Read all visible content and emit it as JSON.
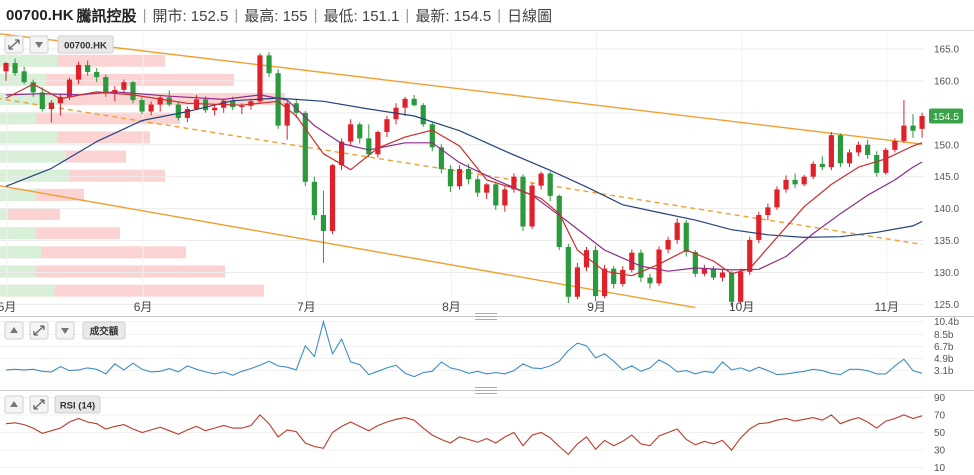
{
  "header": {
    "symbol": "00700.HK",
    "name": "騰訊控股",
    "open_label": "開市: 152.5",
    "high_label": "最高: 155",
    "low_label": "最低: 151.1",
    "last_label": "最新: 154.5",
    "period_label": "日線圖"
  },
  "colors": {
    "up": "#e0202a",
    "down": "#2a9a3c",
    "channel": "#f0a030",
    "ma_short": "#cc2c2c",
    "ma_mid": "#8a2f8a",
    "ma_long": "#24437e",
    "volume_line": "#3d8fc6",
    "rsi_line": "#c0392b",
    "price_badge": "#3aa34a",
    "vp_up": "#fbd3d3",
    "vp_down": "#d8efd8"
  },
  "panels": {
    "price_tag": "00700.HK",
    "volume_tag": "成交額",
    "rsi_tag": "RSI (14)"
  },
  "chart_data": [
    {
      "type": "candlestick",
      "title": "00700.HK",
      "price_label": "154.5",
      "y_ticks": [
        165.0,
        160.0,
        155.0,
        150.0,
        145.0,
        140.0,
        135.0,
        130.0,
        125.0
      ],
      "ylim": [
        123.5,
        167.5
      ],
      "x_ticks": [
        "5月",
        "6月",
        "7月",
        "8月",
        "9月",
        "10月",
        "11月"
      ],
      "candles": [
        [
          161.5,
          163,
          160,
          162.8
        ],
        [
          162.8,
          163.5,
          160.8,
          161.2
        ],
        [
          161.5,
          162.2,
          159.5,
          159.8
        ],
        [
          159.8,
          160.2,
          157.5,
          158.2
        ],
        [
          158.2,
          159,
          155.2,
          155.6
        ],
        [
          155.6,
          157,
          153.5,
          156.6
        ],
        [
          156.5,
          157.8,
          154.6,
          157.5
        ],
        [
          157.5,
          160.5,
          157,
          160.2
        ],
        [
          160.2,
          163,
          159.5,
          162.5
        ],
        [
          162.5,
          163.2,
          160.8,
          161.4
        ],
        [
          161.4,
          162,
          159.8,
          160.6
        ],
        [
          160.6,
          161,
          157.5,
          158
        ],
        [
          158,
          159.2,
          156.8,
          158.6
        ],
        [
          158.6,
          160.2,
          158.1,
          159.8
        ],
        [
          159.8,
          160,
          156.5,
          157
        ],
        [
          157,
          157.5,
          154.8,
          155.2
        ],
        [
          155.2,
          156.8,
          154.6,
          156.3
        ],
        [
          156.3,
          157.8,
          155.2,
          157.4
        ],
        [
          157.4,
          158.5,
          156,
          156.3
        ],
        [
          156.3,
          156.8,
          153.8,
          154.2
        ],
        [
          154.2,
          156,
          153.5,
          155.6
        ],
        [
          155.6,
          157.8,
          155.4,
          157.1
        ],
        [
          157.1,
          157.6,
          155,
          155.4
        ],
        [
          155.4,
          156.2,
          154.6,
          155.8
        ],
        [
          155.8,
          157.2,
          155,
          156.9
        ],
        [
          156.9,
          157.5,
          155.4,
          155.9
        ],
        [
          155.9,
          156.5,
          154.8,
          156.1
        ],
        [
          156.1,
          157.2,
          155.5,
          156.8
        ],
        [
          156.8,
          164.3,
          156.5,
          164
        ],
        [
          164,
          164.5,
          160.6,
          161.2
        ],
        [
          161.2,
          161.8,
          152.5,
          153
        ],
        [
          153,
          157,
          150.8,
          156.5
        ],
        [
          156.5,
          157.2,
          154.2,
          155
        ],
        [
          155,
          155.3,
          143.5,
          144.2
        ],
        [
          144.2,
          145,
          138.2,
          139
        ],
        [
          139,
          142.8,
          131.5,
          136.5
        ],
        [
          136.5,
          147,
          136,
          146.8
        ],
        [
          146.8,
          151,
          146,
          150.5
        ],
        [
          150.5,
          154,
          149.8,
          153.2
        ],
        [
          153.2,
          153.5,
          150.2,
          151
        ],
        [
          151,
          153.2,
          148,
          148.5
        ],
        [
          148.5,
          152.2,
          148,
          152
        ],
        [
          152,
          154.5,
          151.2,
          154
        ],
        [
          154,
          156.5,
          153.2,
          155.8
        ],
        [
          155.8,
          157.5,
          154.5,
          157.2
        ],
        [
          157.2,
          157.8,
          156,
          156.2
        ],
        [
          156.2,
          156.5,
          152.8,
          153.2
        ],
        [
          153.2,
          153.6,
          149,
          149.6
        ],
        [
          149.6,
          150.1,
          145.5,
          146.2
        ],
        [
          146.2,
          146.8,
          142.6,
          143.5
        ],
        [
          143.5,
          146.8,
          143,
          146.2
        ],
        [
          146.2,
          147,
          143.8,
          144.6
        ],
        [
          144.6,
          145.2,
          141.8,
          142.5
        ],
        [
          142.5,
          144,
          141.5,
          143.8
        ],
        [
          143.8,
          144.2,
          139.8,
          140.5
        ],
        [
          140.5,
          143.5,
          139.5,
          143
        ],
        [
          143,
          145.5,
          142.5,
          145
        ],
        [
          145,
          145.4,
          136.5,
          137.2
        ],
        [
          137.2,
          144,
          136.8,
          143.6
        ],
        [
          143.6,
          145.8,
          143,
          145.5
        ],
        [
          145.5,
          145.8,
          141.2,
          142
        ],
        [
          142,
          142.2,
          133.5,
          134
        ],
        [
          134,
          134.5,
          125.2,
          126.2
        ],
        [
          126.2,
          131.5,
          125.8,
          130.8
        ],
        [
          130.8,
          134,
          130.2,
          133.5
        ],
        [
          133.5,
          134.2,
          125.5,
          126.3
        ],
        [
          126.3,
          131.2,
          126,
          130.6
        ],
        [
          130.6,
          131,
          127.5,
          128.2
        ],
        [
          128.2,
          131,
          127.8,
          130.4
        ],
        [
          130.4,
          133.6,
          130,
          133.1
        ],
        [
          133.1,
          133.6,
          128.5,
          129.2
        ],
        [
          129.2,
          129.8,
          127.5,
          128.3
        ],
        [
          128.3,
          134.1,
          127.9,
          133.6
        ],
        [
          133.6,
          135.6,
          133,
          135.1
        ],
        [
          135.1,
          138.5,
          134.5,
          137.8
        ],
        [
          137.8,
          138.2,
          132.5,
          133.2
        ],
        [
          133.2,
          133.5,
          129.3,
          129.8
        ],
        [
          129.8,
          131.2,
          129.4,
          130.6
        ],
        [
          130.6,
          131,
          128.8,
          129.2
        ],
        [
          129.2,
          130.5,
          128.6,
          130
        ],
        [
          130,
          130.2,
          124.6,
          125.4
        ],
        [
          125.4,
          130.6,
          125.1,
          130.1
        ],
        [
          130.1,
          135.6,
          129.6,
          135.1
        ],
        [
          135.1,
          139.5,
          134.6,
          139
        ],
        [
          139,
          140.8,
          138.2,
          140.2
        ],
        [
          140.2,
          143.5,
          139.8,
          143
        ],
        [
          143,
          145.2,
          142.5,
          144.5
        ],
        [
          144.5,
          145.5,
          143.2,
          143.8
        ],
        [
          143.8,
          145.3,
          143.5,
          145
        ],
        [
          145,
          147.4,
          144.6,
          147
        ],
        [
          147,
          148.2,
          146,
          146.5
        ],
        [
          146.5,
          152,
          146,
          151.5
        ],
        [
          151.5,
          151.8,
          146.5,
          147.1
        ],
        [
          147.1,
          149.3,
          146.5,
          148.8
        ],
        [
          148.8,
          150.5,
          148.2,
          150
        ],
        [
          150,
          150.8,
          147.8,
          148.4
        ],
        [
          148.4,
          149,
          145,
          145.6
        ],
        [
          145.6,
          149.5,
          145.3,
          149.2
        ],
        [
          149.2,
          151,
          148.8,
          150.6
        ],
        [
          150.6,
          157,
          150.3,
          153
        ],
        [
          153,
          154.8,
          151.1,
          152.2
        ],
        [
          152.5,
          155,
          151.1,
          154.5
        ]
      ],
      "ma_short": [
        [
          0,
          157.3
        ],
        [
          3,
          159.5
        ],
        [
          6,
          157.2
        ],
        [
          10,
          158.3
        ],
        [
          14,
          157.8
        ],
        [
          20,
          156.5
        ],
        [
          26,
          156.2
        ],
        [
          30,
          156.8
        ],
        [
          32,
          154.5
        ],
        [
          35,
          148.6
        ],
        [
          38,
          146.1
        ],
        [
          41,
          149.5
        ],
        [
          44,
          151.2
        ],
        [
          47,
          152.3
        ],
        [
          50,
          149.8
        ],
        [
          53,
          144.5
        ],
        [
          56,
          143.2
        ],
        [
          59,
          141.6
        ],
        [
          61,
          139.2
        ],
        [
          63,
          133.5
        ],
        [
          66,
          130.2
        ],
        [
          69,
          129.5
        ],
        [
          72,
          131.3
        ],
        [
          75,
          133.5
        ],
        [
          78,
          131.8
        ],
        [
          80,
          129.8
        ],
        [
          82,
          130.6
        ],
        [
          85,
          135.5
        ],
        [
          88,
          140.3
        ],
        [
          91,
          143.8
        ],
        [
          94,
          146.5
        ],
        [
          97,
          147.8
        ],
        [
          100,
          149.8
        ],
        [
          101,
          150.3
        ]
      ],
      "ma_mid": [
        [
          0,
          157.8
        ],
        [
          4,
          158
        ],
        [
          8,
          157.8
        ],
        [
          12,
          158.3
        ],
        [
          18,
          157.6
        ],
        [
          24,
          157.1
        ],
        [
          28,
          157.8
        ],
        [
          31,
          157
        ],
        [
          34,
          153
        ],
        [
          37,
          150.2
        ],
        [
          40,
          149.2
        ],
        [
          44,
          150.3
        ],
        [
          47,
          150.3
        ],
        [
          50,
          147.2
        ],
        [
          54,
          144.5
        ],
        [
          58,
          142.1
        ],
        [
          62,
          137.9
        ],
        [
          66,
          133.5
        ],
        [
          70,
          131
        ],
        [
          73,
          130.2
        ],
        [
          76,
          130.7
        ],
        [
          80,
          130.4
        ],
        [
          83,
          130.5
        ],
        [
          86,
          132.5
        ],
        [
          89,
          136.1
        ],
        [
          92,
          139.2
        ],
        [
          95,
          142.1
        ],
        [
          98,
          144.5
        ],
        [
          100,
          146.5
        ],
        [
          101,
          147.3
        ]
      ],
      "ma_long": [
        [
          0,
          143.5
        ],
        [
          5,
          146.3
        ],
        [
          10,
          150.5
        ],
        [
          15,
          153.8
        ],
        [
          20,
          155.2
        ],
        [
          25,
          156.9
        ],
        [
          30,
          157.3
        ],
        [
          35,
          156.8
        ],
        [
          40,
          155.6
        ],
        [
          45,
          154.5
        ],
        [
          50,
          152.2
        ],
        [
          55,
          149
        ],
        [
          60,
          146
        ],
        [
          64,
          143.4
        ],
        [
          68,
          140.6
        ],
        [
          72,
          139.4
        ],
        [
          76,
          138.2
        ],
        [
          80,
          136.7
        ],
        [
          84,
          135.9
        ],
        [
          88,
          135.5
        ],
        [
          92,
          135.6
        ],
        [
          96,
          136.3
        ],
        [
          100,
          137.3
        ],
        [
          101,
          138
        ]
      ],
      "channel_upper": [
        [
          -2,
          167.6
        ],
        [
          101,
          150.1
        ]
      ],
      "channel_lower": [
        [
          -2,
          143.9
        ],
        [
          76,
          124.5
        ]
      ],
      "channel_mid": [
        [
          -2,
          157.5
        ],
        [
          101,
          134.4
        ]
      ],
      "volume_profile": [
        {
          "price": 163,
          "up": 0.55,
          "down": 0.35
        },
        {
          "price": 160,
          "up": 0.78,
          "down": 0.28
        },
        {
          "price": 157,
          "up": 0.95,
          "down": 0.38
        },
        {
          "price": 154,
          "up": 0.6,
          "down": 0.22
        },
        {
          "price": 151,
          "up": 0.5,
          "down": 0.35
        },
        {
          "price": 148,
          "up": 0.42,
          "down": 0.4
        },
        {
          "price": 145,
          "up": 0.55,
          "down": 0.42
        },
        {
          "price": 142,
          "up": 0.28,
          "down": 0.22
        },
        {
          "price": 139,
          "up": 0.2,
          "down": 0.05
        },
        {
          "price": 136,
          "up": 0.4,
          "down": 0.22
        },
        {
          "price": 133,
          "up": 0.62,
          "down": 0.25
        },
        {
          "price": 130,
          "up": 0.75,
          "down": 0.22
        },
        {
          "price": 127,
          "up": 0.88,
          "down": 0.33
        }
      ]
    },
    {
      "type": "line",
      "title": "成交額",
      "y_ticks": [
        "10.4b",
        "8.5b",
        "6.7b",
        "4.9b",
        "3.1b"
      ],
      "ylim": [
        0.8,
        10.8
      ],
      "values": [
        3.2,
        3.3,
        3.2,
        3.3,
        3.0,
        2.9,
        3.7,
        3.1,
        3.2,
        3.5,
        3.3,
        2.6,
        4.1,
        3.2,
        4.2,
        3.3,
        2.9,
        3.0,
        3.4,
        2.9,
        3.8,
        3.3,
        2.9,
        2.6,
        2.9,
        2.4,
        3.0,
        3.4,
        3.9,
        4.5,
        3.8,
        3.6,
        3.2,
        6.8,
        5.2,
        10.4,
        5.6,
        7.8,
        4.4,
        4.0,
        2.5,
        3.0,
        3.5,
        3.9,
        2.7,
        2.2,
        2.8,
        3.0,
        4.4,
        3.5,
        3.2,
        2.7,
        3.0,
        2.6,
        2.8,
        2.6,
        3.1,
        4.1,
        3.5,
        3.4,
        3.8,
        4.5,
        6.1,
        7.2,
        6.8,
        5.0,
        5.6,
        4.5,
        3.2,
        3.8,
        3.0,
        3.5,
        4.7,
        4.0,
        2.9,
        3.1,
        2.6,
        3.0,
        2.8,
        4.4,
        3.2,
        3.5,
        3.0,
        3.6,
        3.1,
        2.5,
        2.6,
        2.8,
        3.0,
        3.3,
        3.1,
        2.7,
        2.5,
        3.3,
        3.3,
        3.1,
        2.6,
        2.6,
        3.8,
        4.8,
        3.1,
        2.7
      ]
    },
    {
      "type": "line",
      "title": "RSI (14)",
      "y_ticks": [
        90,
        70,
        50,
        30,
        10
      ],
      "ylim": [
        5,
        95
      ],
      "values": [
        60,
        61,
        59,
        55,
        49,
        52,
        55,
        62,
        66,
        62,
        60,
        54,
        57,
        59,
        54,
        50,
        53,
        56,
        52,
        48,
        53,
        57,
        52,
        55,
        58,
        55,
        55,
        58,
        70,
        60,
        45,
        53,
        51,
        38,
        34,
        32,
        50,
        57,
        62,
        57,
        52,
        58,
        62,
        65,
        67,
        64,
        55,
        47,
        42,
        38,
        45,
        42,
        39,
        43,
        38,
        45,
        50,
        35,
        47,
        50,
        44,
        34,
        25,
        37,
        45,
        31,
        41,
        35,
        40,
        47,
        37,
        35,
        46,
        50,
        54,
        42,
        36,
        40,
        37,
        41,
        30,
        44,
        54,
        60,
        61,
        64,
        66,
        63,
        65,
        67,
        64,
        70,
        60,
        64,
        67,
        62,
        55,
        63,
        66,
        70,
        66,
        69
      ]
    }
  ]
}
